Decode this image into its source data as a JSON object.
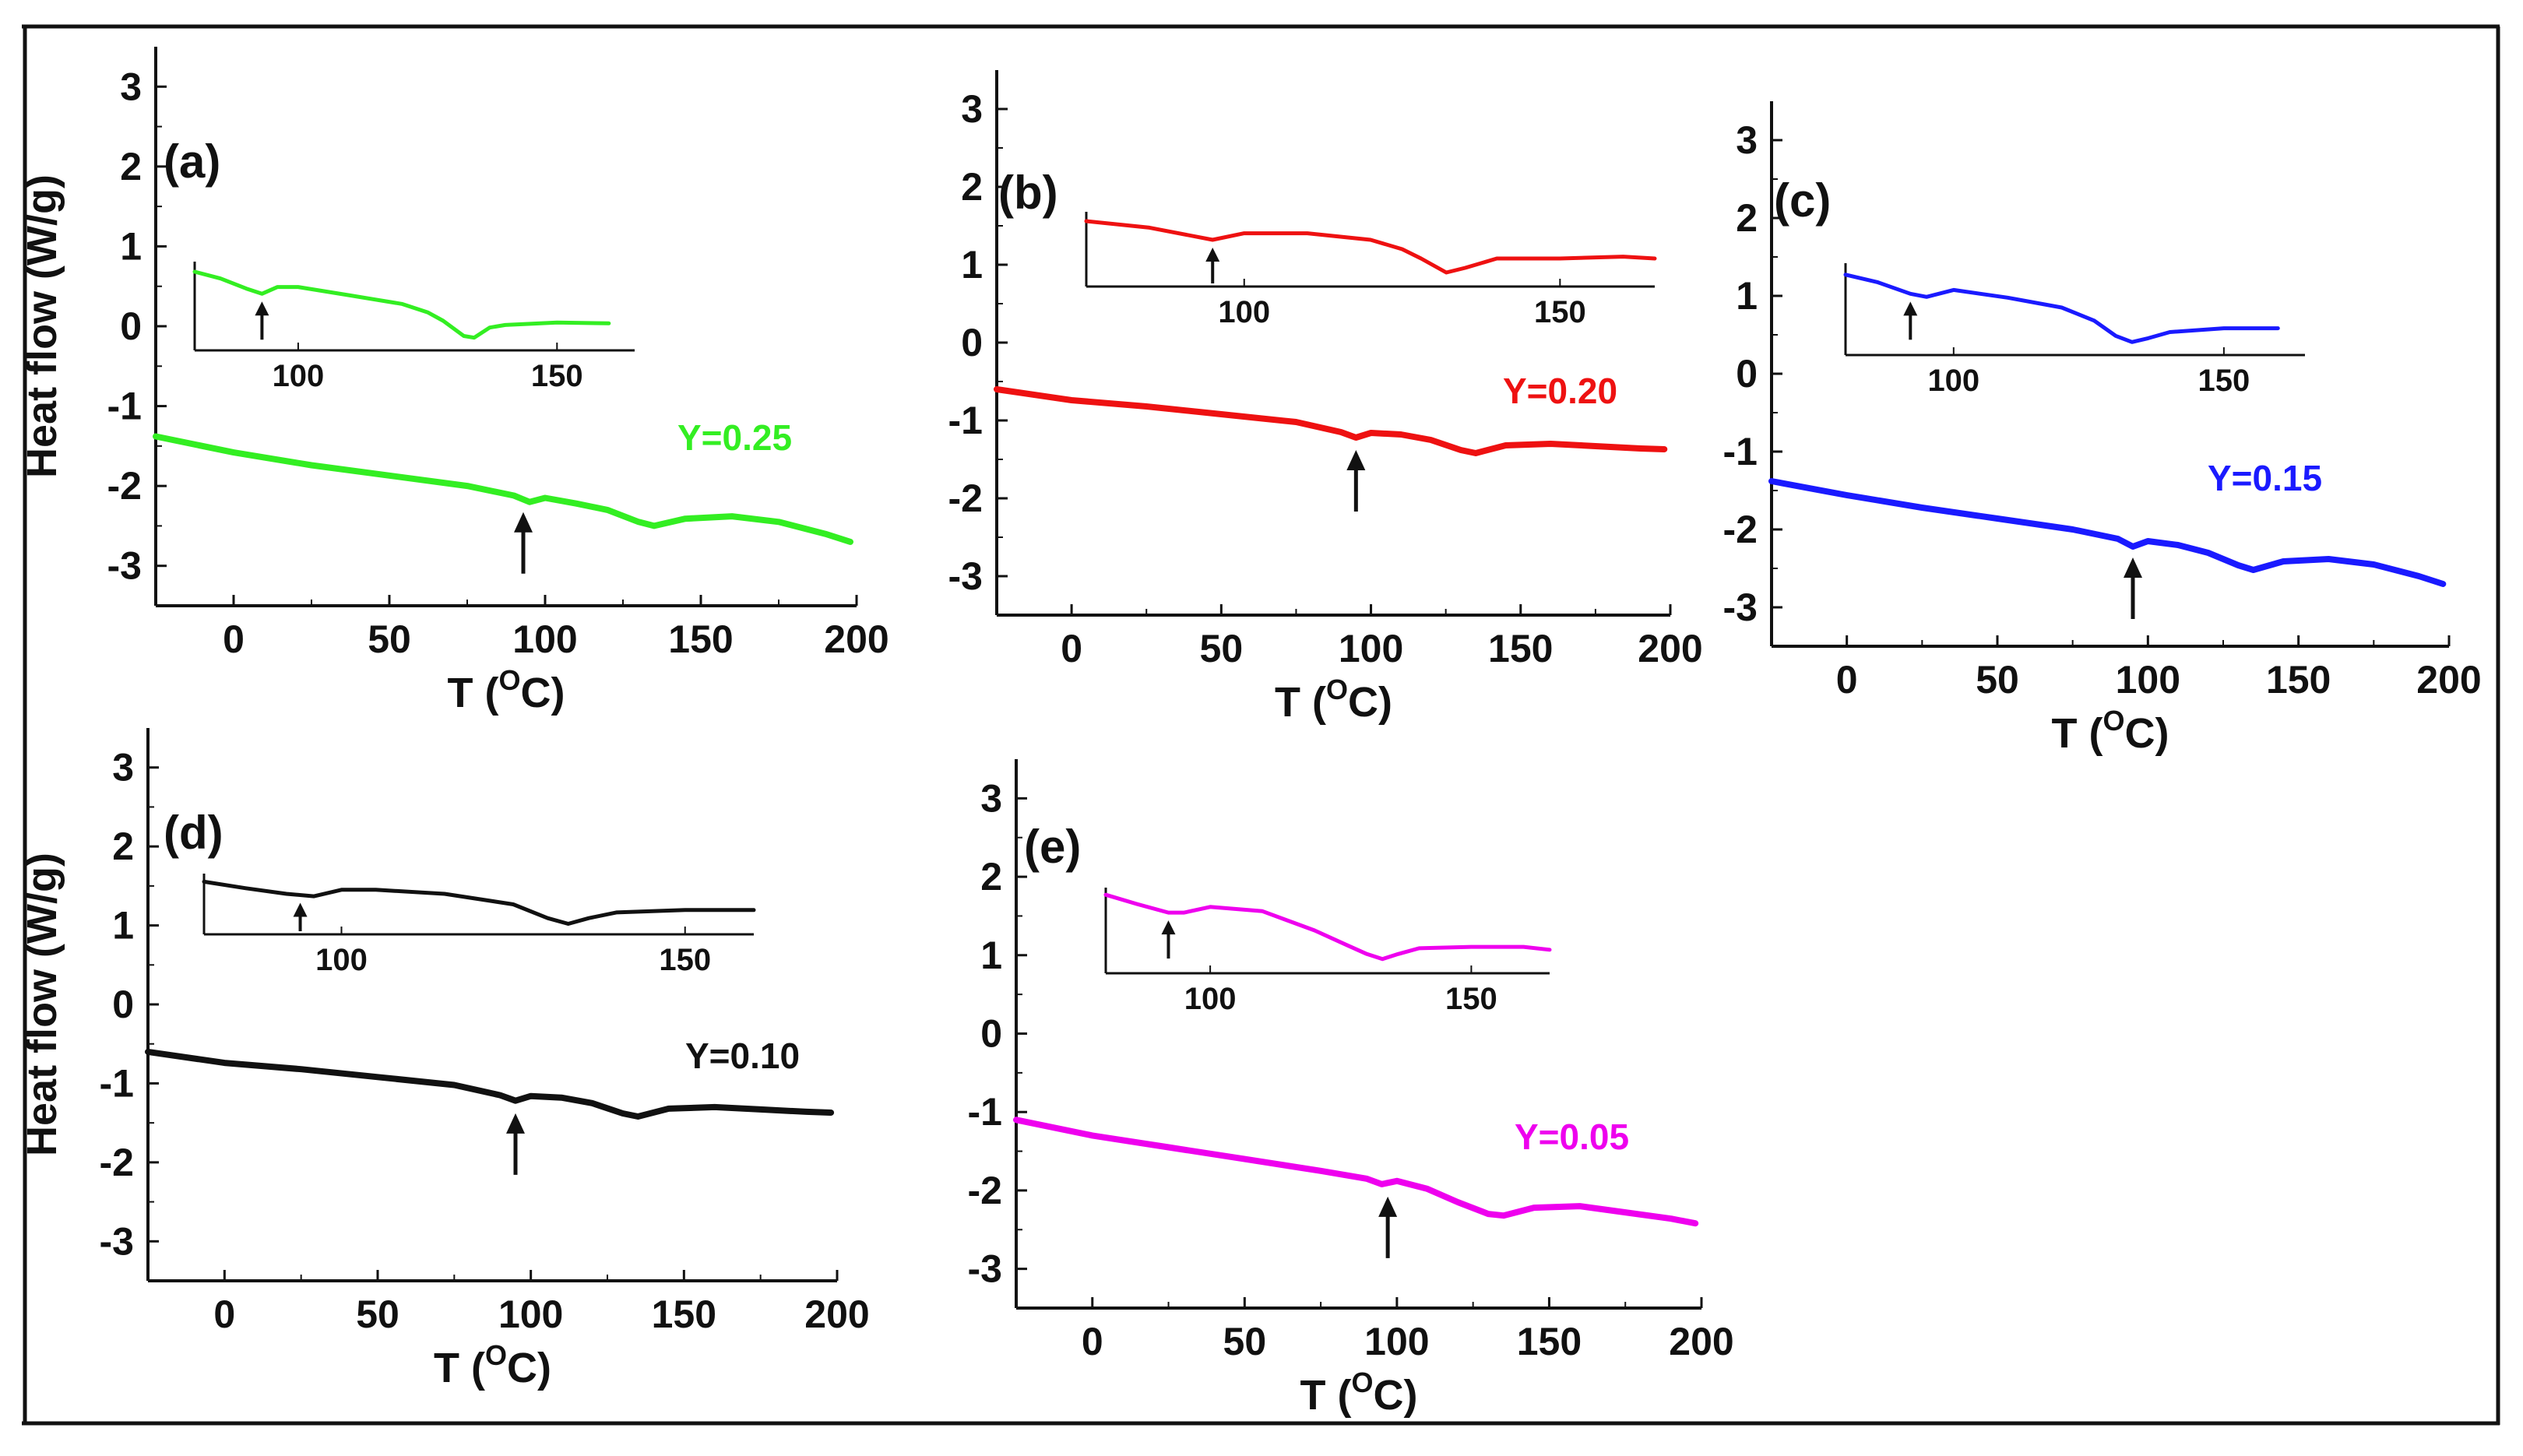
{
  "chart_data": [
    {
      "type": "line",
      "panel_label": "(a)",
      "xlabel": "T (OC)",
      "ylabel": "Heat flow (W/g)",
      "xlim": [
        -25,
        200
      ],
      "ylim": [
        -3.5,
        3.5
      ],
      "xticks": [
        0,
        50,
        100,
        150,
        200
      ],
      "yticks": [
        -3,
        -2,
        -1,
        0,
        1,
        2,
        3
      ],
      "series": [
        {
          "name": "Y=0.25",
          "color": "#33ee22",
          "x": [
            -25,
            0,
            25,
            50,
            75,
            90,
            95,
            100,
            110,
            120,
            130,
            135,
            145,
            160,
            175,
            190,
            198
          ],
          "y": [
            -1.38,
            -1.58,
            -1.74,
            -1.87,
            -2.0,
            -2.12,
            -2.2,
            -2.15,
            -2.22,
            -2.3,
            -2.45,
            -2.5,
            -2.41,
            -2.38,
            -2.45,
            -2.6,
            -2.7
          ]
        }
      ],
      "annotations": [
        {
          "type": "arrow",
          "x": 93,
          "y": -2.25
        }
      ],
      "inset": {
        "xlim": [
          80,
          165
        ],
        "xticks": [
          100,
          150
        ],
        "x": [
          80,
          85,
          90,
          93,
          96,
          100,
          110,
          120,
          125,
          128,
          132,
          134,
          137,
          140,
          150,
          160
        ],
        "y": [
          0.58,
          0.5,
          0.38,
          0.32,
          0.4,
          0.4,
          0.3,
          0.2,
          0.1,
          0.0,
          -0.18,
          -0.2,
          -0.08,
          -0.05,
          -0.02,
          -0.03
        ],
        "ylim": [
          -0.35,
          0.7
        ],
        "arrow_x": 93
      }
    },
    {
      "type": "line",
      "panel_label": "(b)",
      "xlabel": "T (OC)",
      "ylabel": "",
      "xlim": [
        -25,
        200
      ],
      "ylim": [
        -3.5,
        3.5
      ],
      "xticks": [
        0,
        50,
        100,
        150,
        200
      ],
      "yticks": [
        -3,
        -2,
        -1,
        0,
        1,
        2,
        3
      ],
      "series": [
        {
          "name": "Y=0.20",
          "color": "#ee1111",
          "x": [
            -25,
            0,
            25,
            50,
            75,
            90,
            95,
            100,
            110,
            120,
            130,
            135,
            145,
            160,
            175,
            190,
            198
          ],
          "y": [
            -0.6,
            -0.74,
            -0.82,
            -0.92,
            -1.02,
            -1.15,
            -1.22,
            -1.16,
            -1.18,
            -1.25,
            -1.38,
            -1.42,
            -1.32,
            -1.3,
            -1.33,
            -1.36,
            -1.37
          ]
        }
      ],
      "annotations": [
        {
          "type": "arrow",
          "x": 95,
          "y": -1.3
        }
      ],
      "inset": {
        "xlim": [
          75,
          165
        ],
        "xticks": [
          100,
          150
        ],
        "x": [
          75,
          85,
          95,
          100,
          110,
          120,
          125,
          128,
          132,
          135,
          140,
          150,
          160,
          165
        ],
        "y": [
          1.55,
          1.48,
          1.35,
          1.42,
          1.42,
          1.35,
          1.25,
          1.15,
          1.0,
          1.05,
          1.15,
          1.15,
          1.17,
          1.15
        ],
        "ylim": [
          0.85,
          1.65
        ],
        "arrow_x": 95
      }
    },
    {
      "type": "line",
      "panel_label": "(c)",
      "xlabel": "T (OC)",
      "ylabel": "",
      "xlim": [
        -25,
        200
      ],
      "ylim": [
        -3.5,
        3.5
      ],
      "xticks": [
        0,
        50,
        100,
        150,
        200
      ],
      "yticks": [
        -3,
        -2,
        -1,
        0,
        1,
        2,
        3
      ],
      "series": [
        {
          "name": "Y=0.15",
          "color": "#1a1aff",
          "x": [
            -25,
            0,
            25,
            50,
            75,
            90,
            95,
            100,
            110,
            120,
            130,
            135,
            145,
            160,
            175,
            190,
            198
          ],
          "y": [
            -1.38,
            -1.56,
            -1.72,
            -1.86,
            -2.0,
            -2.12,
            -2.22,
            -2.15,
            -2.2,
            -2.3,
            -2.46,
            -2.52,
            -2.41,
            -2.38,
            -2.45,
            -2.6,
            -2.7
          ]
        }
      ],
      "annotations": [
        {
          "type": "arrow",
          "x": 95,
          "y": -2.28
        }
      ],
      "inset": {
        "xlim": [
          80,
          165
        ],
        "xticks": [
          100,
          150
        ],
        "x": [
          80,
          86,
          92,
          95,
          100,
          110,
          120,
          126,
          130,
          133,
          136,
          140,
          150,
          160
        ],
        "y": [
          1.25,
          1.15,
          1.0,
          0.96,
          1.05,
          0.95,
          0.82,
          0.65,
          0.45,
          0.37,
          0.42,
          0.5,
          0.55,
          0.55
        ],
        "ylim": [
          0.2,
          1.4
        ],
        "arrow_x": 92
      }
    },
    {
      "type": "line",
      "panel_label": "(d)",
      "xlabel": "T (OC)",
      "ylabel": "Heat flow (W/g)",
      "xlim": [
        -25,
        200
      ],
      "ylim": [
        -3.5,
        3.5
      ],
      "xticks": [
        0,
        50,
        100,
        150,
        200
      ],
      "yticks": [
        -3,
        -2,
        -1,
        0,
        1,
        2,
        3
      ],
      "series": [
        {
          "name": "Y=0.10",
          "color": "#111111",
          "x": [
            -25,
            0,
            25,
            50,
            75,
            90,
            95,
            100,
            110,
            120,
            130,
            135,
            145,
            160,
            175,
            190,
            198
          ],
          "y": [
            -0.6,
            -0.74,
            -0.82,
            -0.92,
            -1.02,
            -1.15,
            -1.22,
            -1.16,
            -1.18,
            -1.25,
            -1.38,
            -1.42,
            -1.32,
            -1.3,
            -1.33,
            -1.36,
            -1.37
          ]
        }
      ],
      "annotations": [
        {
          "type": "arrow",
          "x": 95,
          "y": -1.3
        }
      ],
      "inset": {
        "xlim": [
          80,
          160
        ],
        "xticks": [
          100,
          150
        ],
        "x": [
          80,
          86,
          92,
          96,
          100,
          105,
          115,
          125,
          130,
          133,
          136,
          140,
          150,
          160
        ],
        "y": [
          1.5,
          1.42,
          1.35,
          1.32,
          1.4,
          1.4,
          1.35,
          1.22,
          1.05,
          0.98,
          1.05,
          1.12,
          1.15,
          1.15
        ],
        "ylim": [
          0.85,
          1.6
        ],
        "arrow_x": 94
      }
    },
    {
      "type": "line",
      "panel_label": "(e)",
      "xlabel": "T (OC)",
      "ylabel": "",
      "xlim": [
        -25,
        200
      ],
      "ylim": [
        -3.5,
        3.5
      ],
      "xticks": [
        0,
        50,
        100,
        150,
        200
      ],
      "yticks": [
        -3,
        -2,
        -1,
        0,
        1,
        2,
        3
      ],
      "series": [
        {
          "name": "Y=0.05",
          "color": "#ee00ee",
          "x": [
            -25,
            0,
            25,
            50,
            75,
            90,
            95,
            100,
            110,
            120,
            130,
            135,
            145,
            160,
            175,
            190,
            198
          ],
          "y": [
            -1.1,
            -1.3,
            -1.45,
            -1.6,
            -1.75,
            -1.85,
            -1.92,
            -1.88,
            -1.98,
            -2.15,
            -2.3,
            -2.32,
            -2.22,
            -2.2,
            -2.28,
            -2.36,
            -2.42
          ]
        }
      ],
      "annotations": [
        {
          "type": "arrow",
          "x": 97,
          "y": -2.0
        }
      ],
      "inset": {
        "xlim": [
          80,
          165
        ],
        "xticks": [
          100,
          150
        ],
        "x": [
          80,
          86,
          92,
          95,
          100,
          110,
          120,
          126,
          130,
          133,
          136,
          140,
          150,
          160,
          165
        ],
        "y": [
          1.55,
          1.42,
          1.3,
          1.3,
          1.38,
          1.32,
          1.05,
          0.85,
          0.72,
          0.65,
          0.72,
          0.8,
          0.82,
          0.82,
          0.78
        ],
        "ylim": [
          0.45,
          1.65
        ],
        "arrow_x": 92
      }
    }
  ]
}
